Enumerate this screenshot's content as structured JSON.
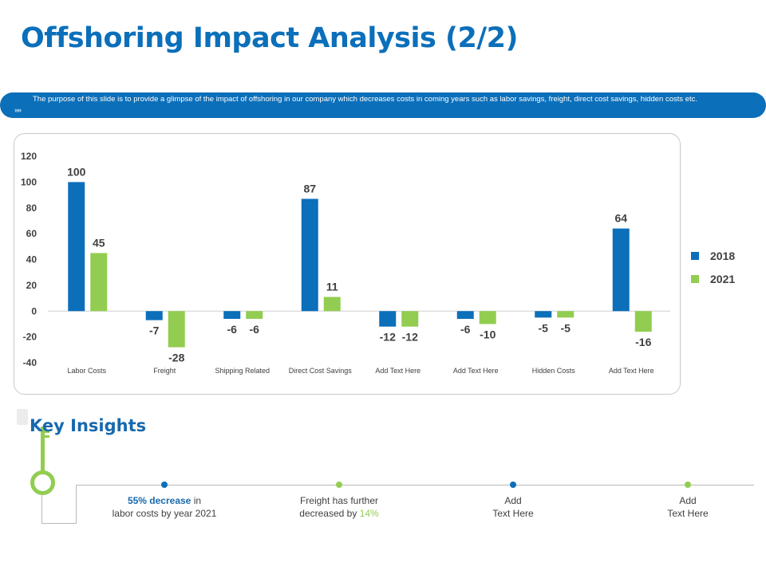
{
  "page": {
    "title": "Offshoring Impact Analysis (2/2)",
    "banner": {
      "icon": "chevrons-right-icon",
      "icon_glyph": "»»",
      "text": "The purpose of this slide is to provide a glimpse of the impact of offshoring in our company which decreases costs in coming years such as labor savings, freight, direct cost savings, hidden costs etc."
    }
  },
  "colors": {
    "primary": "#0b6fba",
    "series_2018": "#0b6fba",
    "series_2021": "#92cd51",
    "text": "#404040",
    "gridline": "#d0d0d0"
  },
  "chart_data": {
    "type": "bar",
    "title": "",
    "xlabel": "",
    "ylabel": "",
    "categories": [
      "Labor Costs",
      "Freight",
      "Shipping Related",
      "Direct Cost Savings",
      "Add Text Here",
      "Add Text Here",
      "Hidden Costs",
      "Add Text Here"
    ],
    "series": [
      {
        "name": "2018",
        "color": "#0b6fba",
        "values": [
          100,
          -7,
          -6,
          87,
          -12,
          -6,
          -5,
          64
        ]
      },
      {
        "name": "2021",
        "color": "#92cd51",
        "values": [
          45,
          -28,
          -6,
          11,
          -12,
          -10,
          -5,
          -16
        ]
      }
    ],
    "ylim": [
      -40,
      120
    ],
    "yticks": [
      -40,
      -20,
      0,
      20,
      40,
      60,
      80,
      100,
      120
    ],
    "grid": false,
    "data_labels": true,
    "legend": {
      "position": "right",
      "entries": [
        "2018",
        "2021"
      ]
    }
  },
  "insights": {
    "title": "Key Insights",
    "items": [
      {
        "dot_color": "#0b6fba",
        "highlight": "55%  decrease",
        "line1_rest": " in",
        "line2": "labor costs by year 2021"
      },
      {
        "dot_color": "#92cd51",
        "line1": "Freight has further",
        "line2_pre": "decreased by ",
        "highlight": "14%"
      },
      {
        "dot_color": "#0b6fba",
        "line1": "Add",
        "line2": "Text Here"
      },
      {
        "dot_color": "#92cd51",
        "line1": "Add",
        "line2": "Text Here"
      }
    ]
  }
}
